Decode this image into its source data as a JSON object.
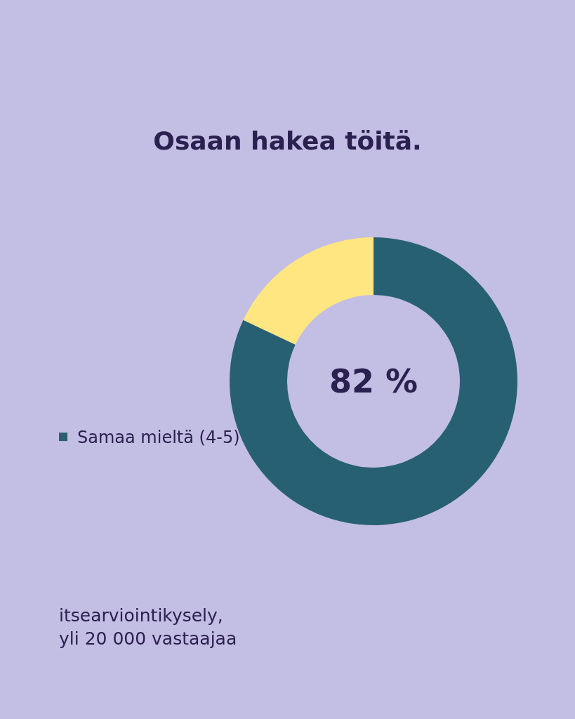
{
  "chart_data": {
    "type": "donut",
    "title": "Osaan hakea töitä.",
    "categories": [
      "Samaa mieltä (4-5)",
      null
    ],
    "values": [
      82,
      18
    ],
    "colors": [
      "#286073",
      "#ffe680"
    ],
    "legend": "left",
    "annotations": [
      "82 %",
      "itsearviointikysely, yli 20 000 vastaajaa"
    ]
  }
}
